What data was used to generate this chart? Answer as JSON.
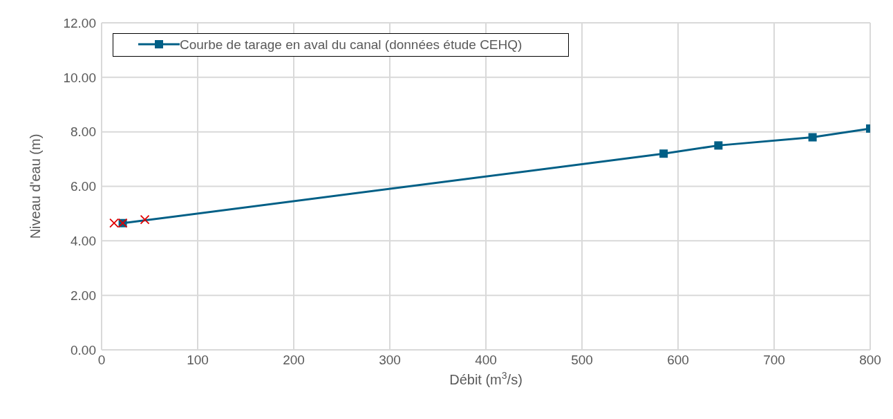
{
  "chart_data": {
    "type": "line",
    "xlabel": "Débit (m$^{3}$/s)",
    "ylabel": "Niveau d'eau (m)",
    "xlim": [
      0,
      800
    ],
    "xticks": [
      0,
      100,
      200,
      300,
      400,
      500,
      600,
      700,
      800
    ],
    "ylim": [
      0,
      12
    ],
    "yticks": [
      {
        "value": 0,
        "label": "0.00"
      },
      {
        "value": 2,
        "label": "2.00"
      },
      {
        "value": 4,
        "label": "4.00"
      },
      {
        "value": 6,
        "label": "6.00"
      },
      {
        "value": 8,
        "label": "8.00"
      },
      {
        "value": 10,
        "label": "10.00"
      },
      {
        "value": 12,
        "label": "12.00"
      }
    ],
    "grid": true,
    "legend": "top left",
    "series": [
      {
        "name": "Courbe de tarage en aval du canal (données étude CEHQ)",
        "color": "#005f86",
        "marker": "square",
        "x": [
          22,
          585,
          642,
          740,
          800
        ],
        "values": [
          4.65,
          7.2,
          7.5,
          7.8,
          8.12
        ]
      },
      {
        "type": "scatter",
        "color": "#e00000",
        "marker": "cross",
        "x": [
          13,
          22,
          45
        ],
        "values": [
          4.65,
          4.65,
          4.78
        ]
      }
    ]
  }
}
